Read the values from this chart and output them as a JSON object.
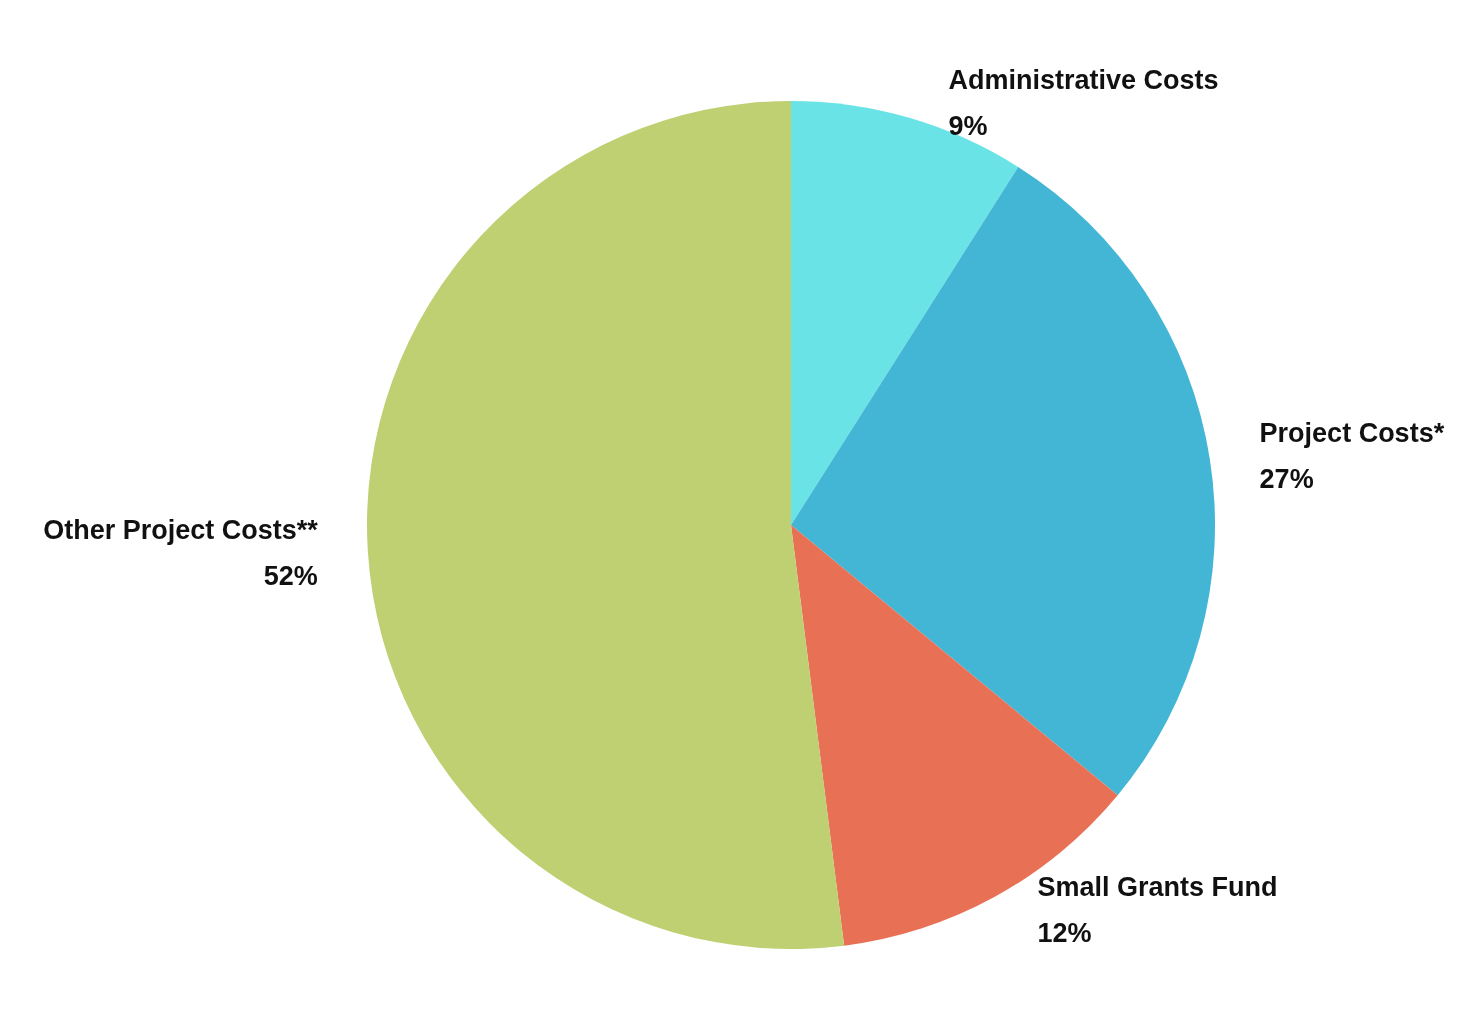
{
  "chart_data": {
    "type": "pie",
    "categories": [
      "Administrative Costs",
      "Project Costs*",
      "Small Grants Fund",
      "Other Project Costs**"
    ],
    "values": [
      9,
      27,
      12,
      52
    ],
    "value_labels": [
      "9%",
      "27%",
      "12%",
      "52%"
    ],
    "colors": [
      "#6ae3e6",
      "#43b6d5",
      "#e87055",
      "#bed072"
    ],
    "legend": false
  }
}
